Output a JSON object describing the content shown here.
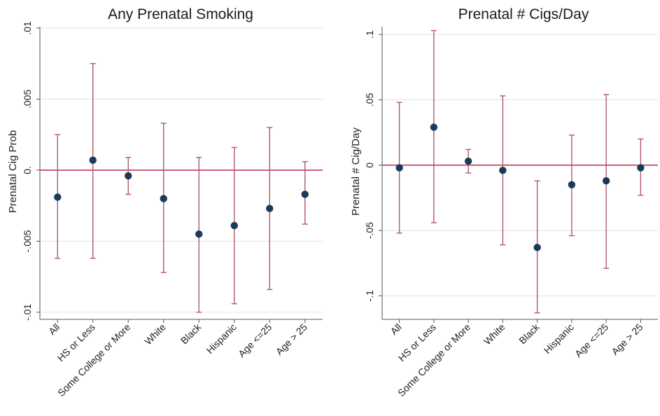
{
  "colors": {
    "ci_line": "#b05a6a",
    "zero_line": "#c8385e",
    "point": "#1a3a5c",
    "grid": "#e3e3e3",
    "axis": "#555555"
  },
  "chart_data": [
    {
      "type": "scatter",
      "title": "Any Prenatal Smoking",
      "xlabel": "",
      "ylabel": "Prenatal Cig Prob",
      "ylim": [
        -0.0105,
        0.0101
      ],
      "yticks": [
        -0.01,
        -0.005,
        0.0,
        0.005,
        0.01
      ],
      "ytick_labels": [
        "-.01",
        "-.005",
        "0.",
        ".005",
        ".01"
      ],
      "categories": [
        "All",
        "HS or Less",
        "Some College or More",
        "White",
        "Black",
        "Hispanic",
        "Age <=25",
        "Age > 25"
      ],
      "estimate": [
        -0.0019,
        0.0007,
        -0.0004,
        -0.002,
        -0.0045,
        -0.0039,
        -0.0027,
        -0.0017
      ],
      "ci_low": [
        -0.0062,
        -0.0062,
        -0.0017,
        -0.0072,
        -0.01,
        -0.0094,
        -0.0084,
        -0.0038
      ],
      "ci_high": [
        0.0025,
        0.0075,
        0.0009,
        0.0033,
        0.0009,
        0.0016,
        0.003,
        0.0006
      ],
      "reference_line": 0,
      "grid": true
    },
    {
      "type": "scatter",
      "title": "Prenatal # Cigs/Day",
      "xlabel": "",
      "ylabel": "Prenatal # Cig/Day",
      "ylim": [
        -0.118,
        0.106
      ],
      "yticks": [
        -0.1,
        -0.05,
        0.0,
        0.05,
        0.1
      ],
      "ytick_labels": [
        "-.1",
        "-.05",
        "0",
        ".05",
        ".1"
      ],
      "categories": [
        "All",
        "HS or Less",
        "Some College or More",
        "White",
        "Black",
        "Hispanic",
        "Age <=25",
        "Age > 25"
      ],
      "estimate": [
        -0.002,
        0.029,
        0.003,
        -0.004,
        -0.063,
        -0.015,
        -0.012,
        -0.002
      ],
      "ci_low": [
        -0.052,
        -0.044,
        -0.006,
        -0.061,
        -0.113,
        -0.054,
        -0.079,
        -0.023
      ],
      "ci_high": [
        0.048,
        0.103,
        0.012,
        0.053,
        -0.012,
        0.023,
        0.054,
        0.02
      ],
      "reference_line": 0,
      "grid": true
    }
  ]
}
